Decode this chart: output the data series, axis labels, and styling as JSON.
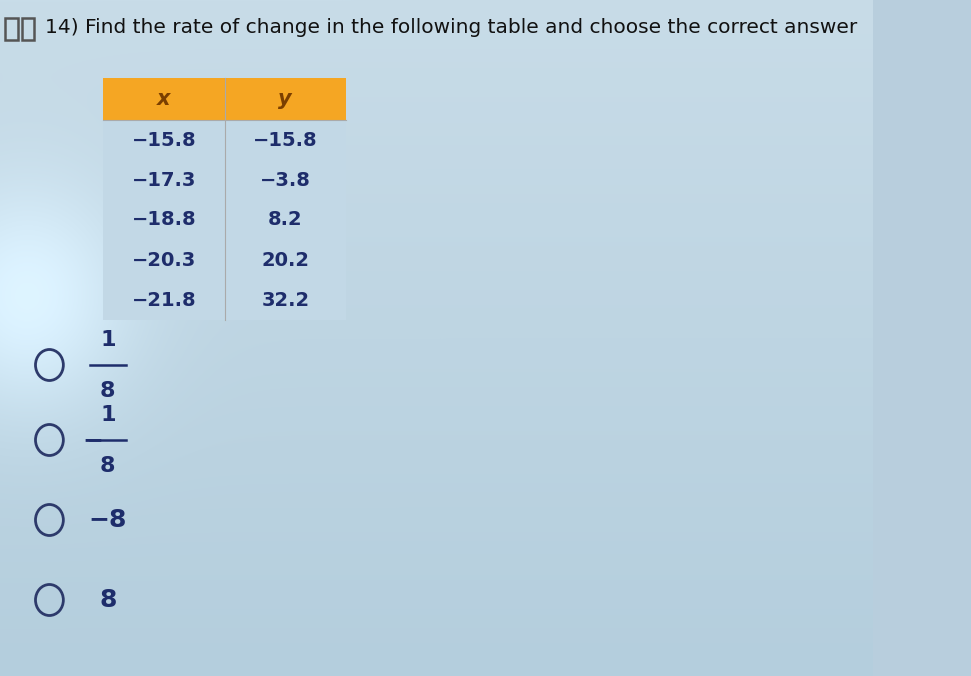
{
  "title": "14) Find the rate of change in the following table and choose the correct answer",
  "title_fontsize": 14.5,
  "bg_color_top": "#c8dce8",
  "bg_color_bottom": "#b8cedd",
  "table_header_bg": "#f5a623",
  "table_header_text_color": "#7b3f00",
  "table_body_bg": "#c8dce8",
  "table_x_col": "x",
  "table_y_col": "y",
  "table_data": [
    [
      "−15.8",
      "−15.8"
    ],
    [
      "−17.3",
      "−3.8"
    ],
    [
      "−18.8",
      "8.2"
    ],
    [
      "−20.3",
      "20.2"
    ],
    [
      "−21.8",
      "32.2"
    ]
  ],
  "choices": [
    {
      "type": "fraction",
      "numerator": "1",
      "denominator": "8",
      "prefix": ""
    },
    {
      "type": "fraction",
      "numerator": "1",
      "denominator": "8",
      "prefix": "−"
    },
    {
      "type": "plain",
      "label": "−8"
    },
    {
      "type": "plain",
      "label": "8"
    }
  ],
  "circle_color": "#2d3a6b",
  "text_color": "#1e2d6b",
  "table_text_color": "#1e2d6b",
  "icon_color": "#333333"
}
